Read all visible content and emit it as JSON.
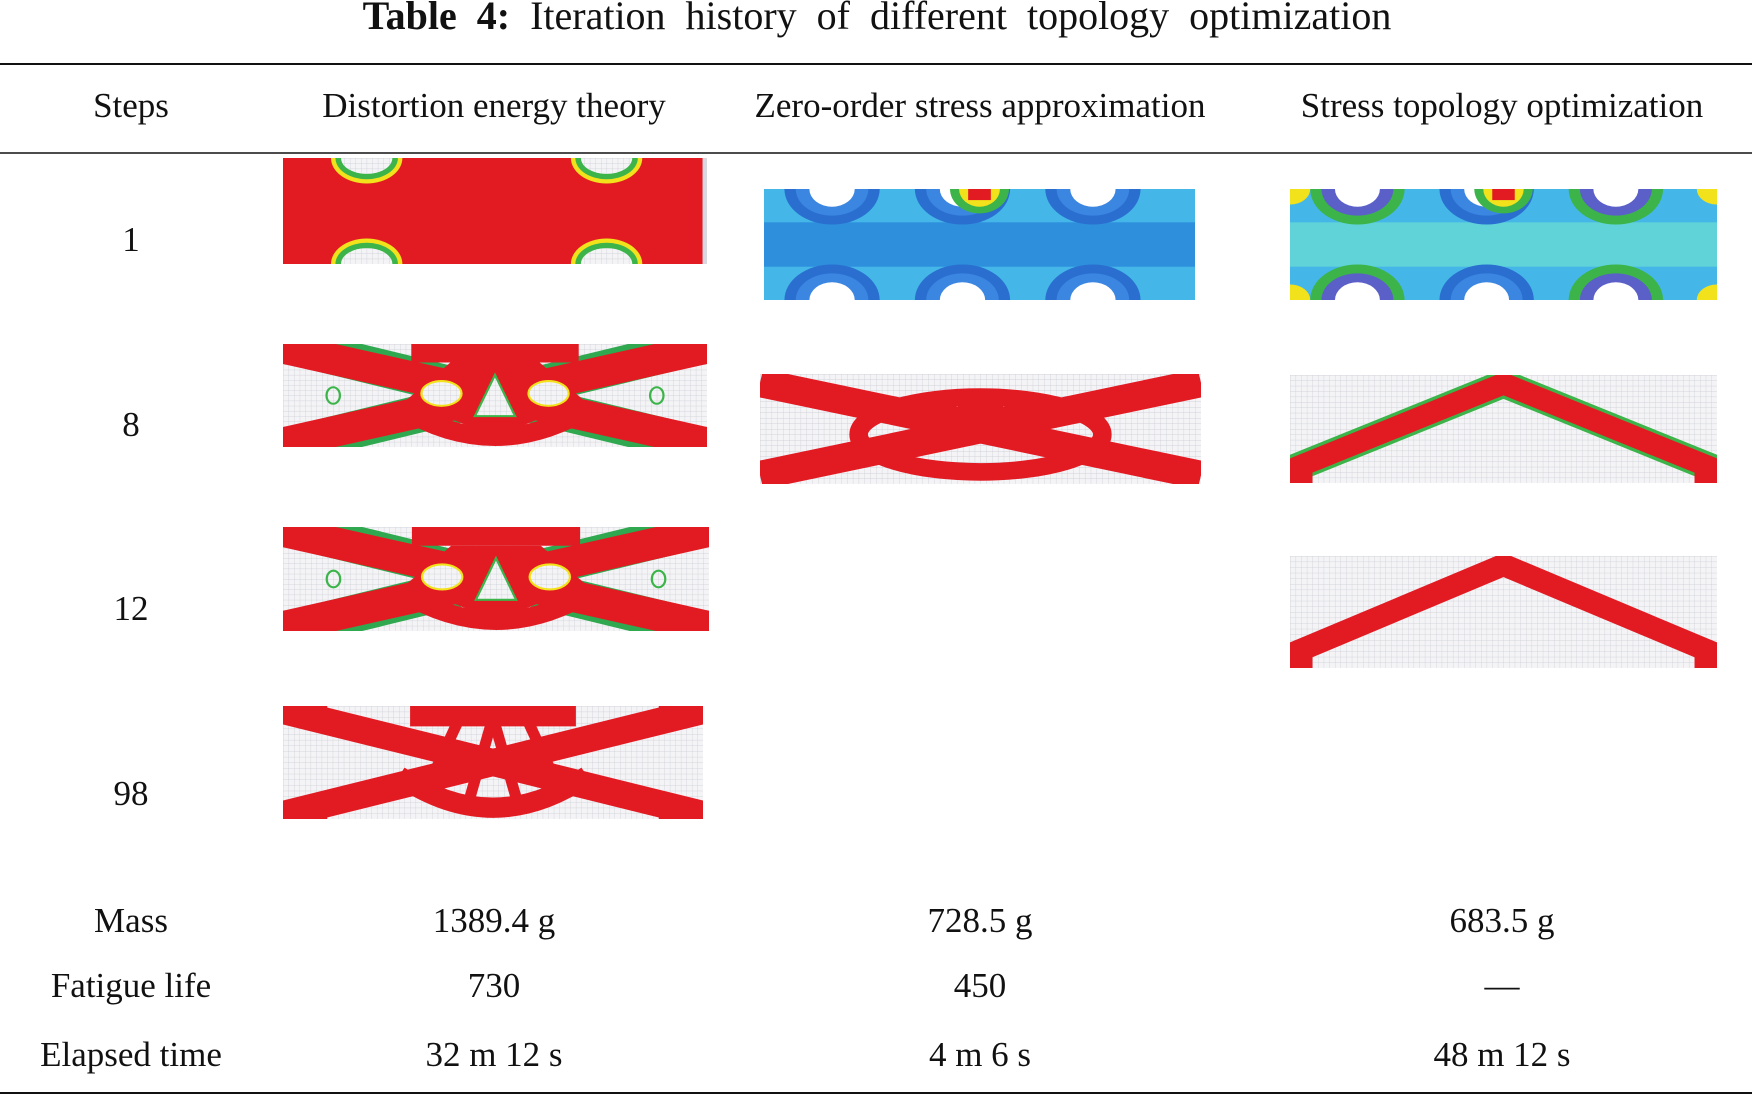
{
  "caption": {
    "label": "Table 4:",
    "text": "Iteration history of different topology optimization"
  },
  "table": {
    "header": [
      "Steps",
      "Distortion energy theory",
      "Zero-order stress approximation",
      "Stress topology optimization"
    ],
    "steps": [
      "1",
      "8",
      "12",
      "98"
    ],
    "rows": [
      [
        "Mass",
        "1389.4 g",
        "728.5 g",
        "683.5 g"
      ],
      [
        "Fatigue life",
        "730",
        "450",
        "—"
      ],
      [
        "Elapsed time",
        "32 m 12 s",
        "4 m 6 s",
        "48 m 12 s"
      ]
    ]
  }
}
